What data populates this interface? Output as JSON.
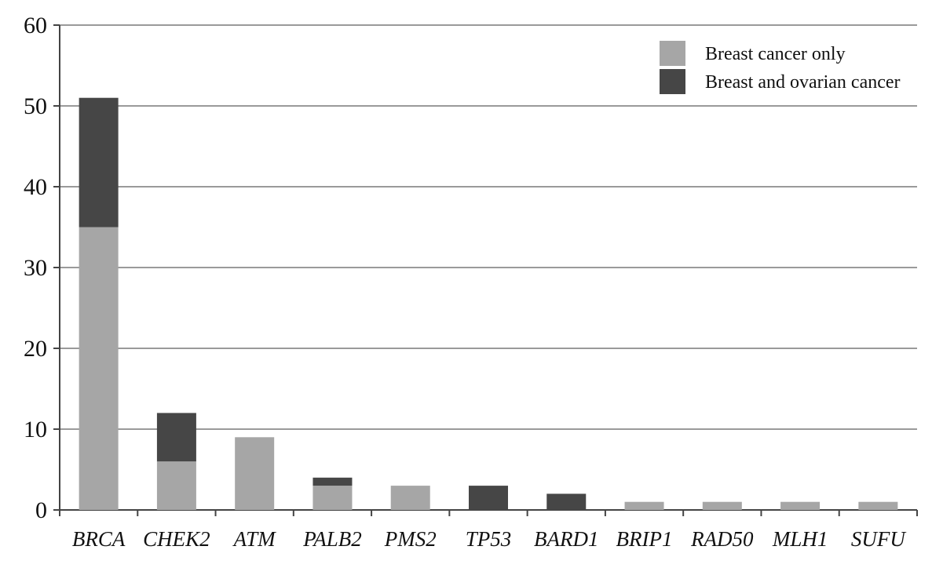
{
  "chart_data": {
    "type": "bar",
    "stacked": true,
    "categories": [
      "BRCA",
      "CHEK2",
      "ATM",
      "PALB2",
      "PMS2",
      "TP53",
      "BARD1",
      "BRIP1",
      "RAD50",
      "MLH1",
      "SUFU"
    ],
    "series": [
      {
        "name": "Breast cancer only",
        "color": "#a6a6a6",
        "values": [
          35,
          6,
          9,
          3,
          3,
          0,
          0,
          1,
          1,
          1,
          1
        ]
      },
      {
        "name": "Breast and ovarian cancer",
        "color": "#464646",
        "values": [
          16,
          6,
          0,
          1,
          0,
          3,
          2,
          0,
          0,
          0,
          0
        ]
      }
    ],
    "ylim": [
      0,
      60
    ],
    "yticks": [
      0,
      10,
      20,
      30,
      40,
      50,
      60
    ],
    "title": "",
    "xlabel": "",
    "ylabel": "",
    "grid": "horizontal",
    "legend_position": "top-right",
    "category_label_style": "italic"
  }
}
